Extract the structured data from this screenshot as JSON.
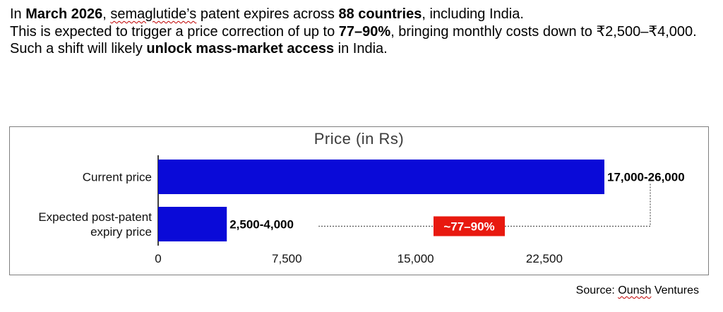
{
  "intro": {
    "line1": {
      "a": "In ",
      "b": "March 2026",
      "c": ", ",
      "d": "semaglutide’s",
      "e": " patent expires across ",
      "f": "88 countries",
      "g": ", including India."
    },
    "line2": {
      "a": "This is expected to trigger a price correction of up to ",
      "b": "77–90%",
      "c": ", bringing monthly costs down to ₹2,500–₹4,000."
    },
    "line3": {
      "a": "Such a shift will likely ",
      "b": "unlock mass-market access",
      "c": " in India."
    }
  },
  "chart_data": {
    "type": "bar",
    "orientation": "horizontal",
    "title": "Price (in Rs)",
    "categories": [
      "Current price",
      "Expected post-patent expiry price"
    ],
    "category_lines": [
      [
        "Current price"
      ],
      [
        "Expected post-patent",
        "expiry price"
      ]
    ],
    "values": [
      26000,
      4000
    ],
    "ranges": [
      [
        17000,
        26000
      ],
      [
        2500,
        4000
      ]
    ],
    "data_labels": [
      "17,000-26,000",
      "2,500-4,000"
    ],
    "xlim": [
      0,
      26000
    ],
    "x_ticks": [
      0,
      7500,
      15000,
      22500
    ],
    "x_tick_labels": [
      "0",
      "7,500",
      "15,000",
      "22,500"
    ],
    "grid": false,
    "bar_color": "#0a0ad8",
    "annotation": {
      "text": "~77–90%",
      "color": "#e8190f"
    }
  },
  "source": "Source: Ounsh Ventures"
}
